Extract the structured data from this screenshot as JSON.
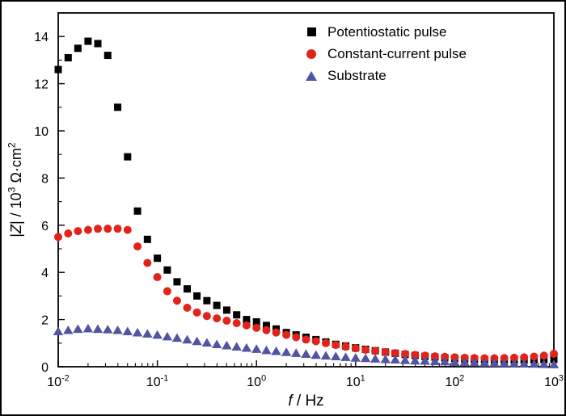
{
  "chart_data": {
    "type": "scatter",
    "x_scale": "log",
    "xlabel": "f / Hz",
    "ylabel": "|Z| / 10^3 Ω·cm^2",
    "xlabel_segments": [
      {
        "text": "f",
        "italic": true
      },
      {
        "text": " / Hz"
      }
    ],
    "ylabel_segments": [
      {
        "text": "|"
      },
      {
        "text": "Z",
        "italic": true
      },
      {
        "text": "| / 10"
      },
      {
        "text": "3",
        "sup": true
      },
      {
        "text": " Ω·cm",
        "sup": false
      },
      {
        "text": "2",
        "sup": true
      }
    ],
    "x_tick_exponents": [
      -2,
      -1,
      0,
      1,
      2,
      3
    ],
    "y_ticks": [
      0,
      2,
      4,
      6,
      8,
      10,
      12,
      14
    ],
    "xlim": [
      0.01,
      1000
    ],
    "ylim": [
      0,
      15
    ],
    "grid": false,
    "legend_position": "top-right",
    "x": [
      0.01,
      0.0126,
      0.0158,
      0.02,
      0.0251,
      0.0316,
      0.0398,
      0.0501,
      0.0631,
      0.0794,
      0.1,
      0.126,
      0.158,
      0.2,
      0.251,
      0.316,
      0.398,
      0.501,
      0.631,
      0.794,
      1,
      1.26,
      1.58,
      2,
      2.51,
      3.16,
      3.98,
      5.01,
      6.31,
      7.94,
      10,
      12.6,
      15.8,
      20,
      25.1,
      31.6,
      39.8,
      50.1,
      63.1,
      79.4,
      100,
      126,
      158,
      200,
      251,
      316,
      398,
      501,
      631,
      794,
      1000
    ],
    "series": [
      {
        "name": "Potentiostatic pulse",
        "marker": "square",
        "color": "#000000",
        "values": [
          12.6,
          13.1,
          13.5,
          13.8,
          13.7,
          13.2,
          11.0,
          8.9,
          6.6,
          5.4,
          4.6,
          4.1,
          3.6,
          3.3,
          3.0,
          2.8,
          2.6,
          2.4,
          2.2,
          2.0,
          1.9,
          1.75,
          1.6,
          1.45,
          1.35,
          1.25,
          1.15,
          1.05,
          0.95,
          0.88,
          0.8,
          0.74,
          0.68,
          0.62,
          0.57,
          0.52,
          0.48,
          0.44,
          0.41,
          0.38,
          0.35,
          0.33,
          0.31,
          0.3,
          0.29,
          0.28,
          0.28,
          0.28,
          0.29,
          0.3,
          0.31
        ]
      },
      {
        "name": "Constant-current pulse",
        "marker": "circle",
        "color": "#e2231a",
        "values": [
          5.5,
          5.65,
          5.75,
          5.8,
          5.85,
          5.85,
          5.85,
          5.8,
          5.1,
          4.4,
          3.8,
          3.2,
          2.8,
          2.5,
          2.3,
          2.15,
          2.05,
          1.95,
          1.85,
          1.75,
          1.65,
          1.55,
          1.45,
          1.35,
          1.25,
          1.15,
          1.08,
          1.0,
          0.92,
          0.85,
          0.78,
          0.72,
          0.67,
          0.62,
          0.58,
          0.54,
          0.5,
          0.47,
          0.44,
          0.42,
          0.4,
          0.38,
          0.37,
          0.36,
          0.36,
          0.37,
          0.38,
          0.4,
          0.43,
          0.47,
          0.55
        ]
      },
      {
        "name": "Substrate",
        "marker": "triangle",
        "color": "#5253a1",
        "values": [
          1.5,
          1.55,
          1.6,
          1.62,
          1.6,
          1.58,
          1.55,
          1.5,
          1.45,
          1.4,
          1.35,
          1.28,
          1.22,
          1.15,
          1.08,
          1.02,
          0.95,
          0.9,
          0.85,
          0.8,
          0.75,
          0.7,
          0.66,
          0.62,
          0.58,
          0.54,
          0.5,
          0.47,
          0.44,
          0.41,
          0.38,
          0.36,
          0.34,
          0.32,
          0.3,
          0.28,
          0.26,
          0.25,
          0.23,
          0.22,
          0.2,
          0.19,
          0.18,
          0.17,
          0.16,
          0.15,
          0.14,
          0.13,
          0.12,
          0.11,
          0.1
        ]
      }
    ]
  },
  "frame": {
    "background": "#ffffff",
    "border_color": "#000000",
    "axis_color": "#000000"
  }
}
